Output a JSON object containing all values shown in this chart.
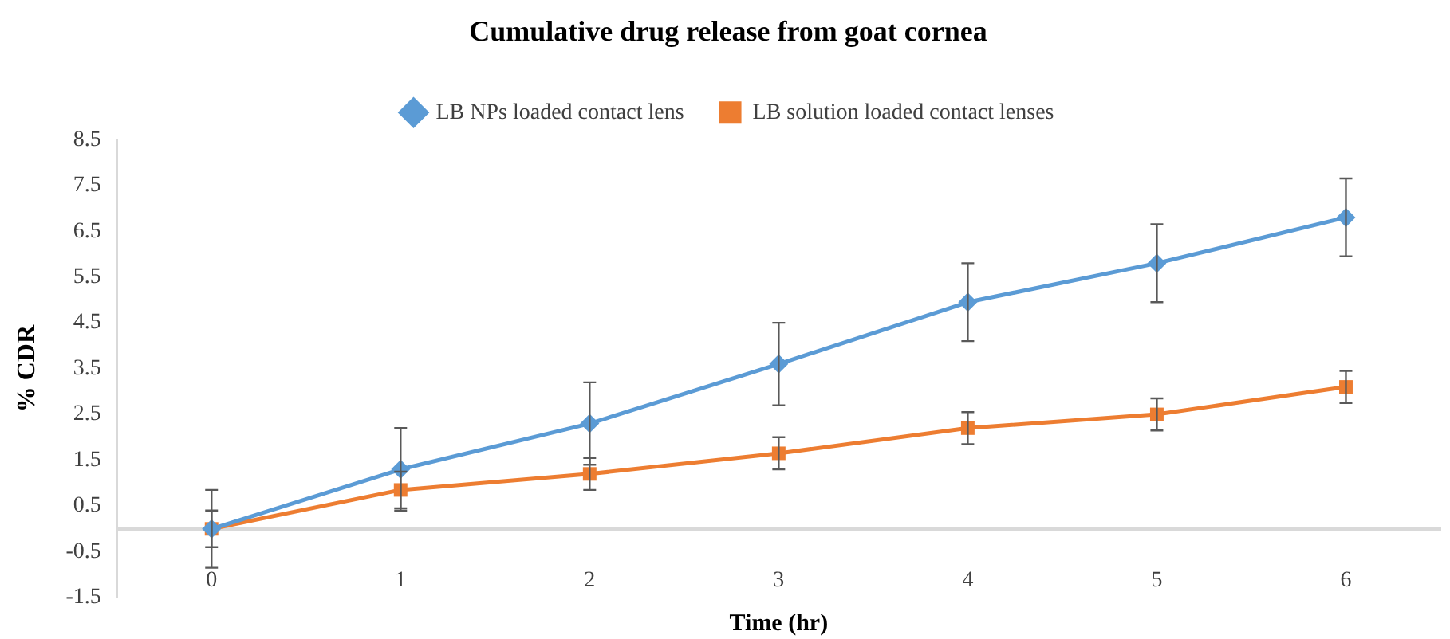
{
  "chart_data": {
    "type": "line",
    "title": "Cumulative drug release from goat cornea",
    "xlabel": "Time (hr)",
    "ylabel": "% CDR",
    "categories": [
      "0",
      "1",
      "2",
      "3",
      "4",
      "5",
      "6"
    ],
    "series": [
      {
        "name": "LB NPs loaded contact lens",
        "color": "#5b9bd5",
        "marker": "diamond",
        "values": [
          0,
          1.3,
          2.3,
          3.6,
          4.95,
          5.8,
          6.8
        ],
        "errors": [
          0.85,
          0.9,
          0.9,
          0.9,
          0.85,
          0.85,
          0.85
        ]
      },
      {
        "name": "LB solution loaded contact lenses",
        "color": "#ed7d31",
        "marker": "square",
        "values": [
          0,
          0.85,
          1.2,
          1.65,
          2.2,
          2.5,
          3.1
        ],
        "errors": [
          0.4,
          0.4,
          0.35,
          0.35,
          0.35,
          0.35,
          0.35
        ]
      }
    ],
    "ylim": [
      -1.5,
      8.5
    ],
    "yticks": [
      -1.5,
      -0.5,
      0.5,
      1.5,
      2.5,
      3.5,
      4.5,
      5.5,
      6.5,
      7.5,
      8.5
    ],
    "grid": false,
    "legend": "top",
    "line_style": "solid"
  }
}
